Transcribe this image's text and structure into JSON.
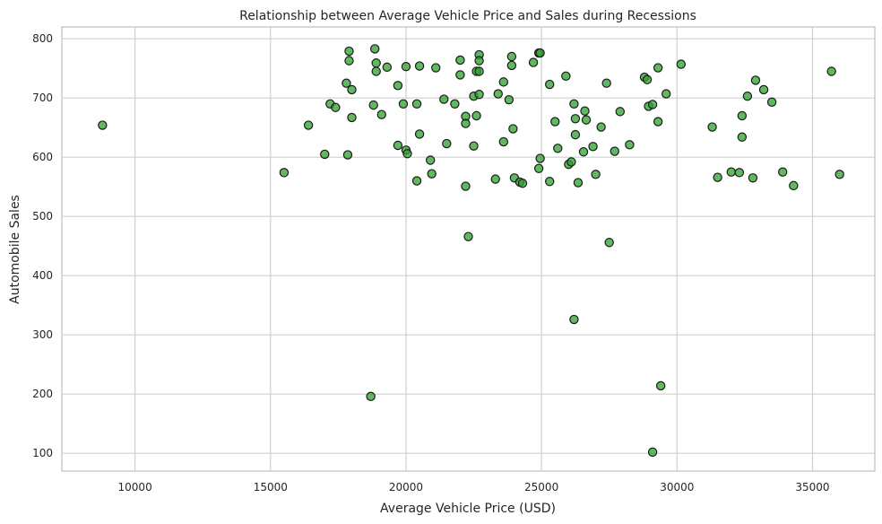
{
  "chart_data": {
    "type": "scatter",
    "title": "Relationship between Average Vehicle Price and Sales during Recessions",
    "xlabel": "Average Vehicle Price (USD)",
    "ylabel": "Automobile Sales",
    "xlim": [
      7300,
      37300
    ],
    "ylim": [
      70,
      820
    ],
    "x_ticks": [
      10000,
      15000,
      20000,
      25000,
      30000,
      35000
    ],
    "y_ticks": [
      100,
      200,
      300,
      400,
      500,
      600,
      700,
      800
    ],
    "grid": true,
    "point_color": "#2ca02c",
    "edge_color": "#1a1a1a",
    "points": [
      [
        8800,
        654
      ],
      [
        15500,
        574
      ],
      [
        16400,
        654
      ],
      [
        17000,
        605
      ],
      [
        17200,
        690
      ],
      [
        17400,
        684
      ],
      [
        17800,
        725
      ],
      [
        17850,
        604
      ],
      [
        17900,
        779
      ],
      [
        17900,
        763
      ],
      [
        18000,
        714
      ],
      [
        18000,
        667
      ],
      [
        18700,
        196
      ],
      [
        18800,
        688
      ],
      [
        18850,
        783
      ],
      [
        18900,
        759
      ],
      [
        18900,
        745
      ],
      [
        19100,
        672
      ],
      [
        19300,
        752
      ],
      [
        19700,
        620
      ],
      [
        19700,
        721
      ],
      [
        19900,
        690
      ],
      [
        20000,
        753
      ],
      [
        20000,
        612
      ],
      [
        20050,
        606
      ],
      [
        20400,
        690
      ],
      [
        20400,
        560
      ],
      [
        20500,
        754
      ],
      [
        20500,
        639
      ],
      [
        20900,
        595
      ],
      [
        20950,
        572
      ],
      [
        21100,
        751
      ],
      [
        21400,
        698
      ],
      [
        21500,
        623
      ],
      [
        21800,
        690
      ],
      [
        22000,
        764
      ],
      [
        22000,
        739
      ],
      [
        22200,
        669
      ],
      [
        22200,
        657
      ],
      [
        22200,
        551
      ],
      [
        22300,
        466
      ],
      [
        22500,
        703
      ],
      [
        22500,
        619
      ],
      [
        22600,
        670
      ],
      [
        22600,
        745
      ],
      [
        22700,
        773
      ],
      [
        22700,
        763
      ],
      [
        22700,
        745
      ],
      [
        22700,
        706
      ],
      [
        23300,
        563
      ],
      [
        23400,
        707
      ],
      [
        23600,
        727
      ],
      [
        23600,
        626
      ],
      [
        23800,
        697
      ],
      [
        23900,
        770
      ],
      [
        23900,
        755
      ],
      [
        23950,
        648
      ],
      [
        24000,
        565
      ],
      [
        24200,
        558
      ],
      [
        24300,
        556
      ],
      [
        24700,
        760
      ],
      [
        24900,
        776
      ],
      [
        24900,
        581
      ],
      [
        24950,
        776
      ],
      [
        24950,
        598
      ],
      [
        25300,
        723
      ],
      [
        25300,
        559
      ],
      [
        25500,
        660
      ],
      [
        25600,
        615
      ],
      [
        25900,
        737
      ],
      [
        26000,
        588
      ],
      [
        26100,
        592
      ],
      [
        26200,
        690
      ],
      [
        26200,
        326
      ],
      [
        26250,
        665
      ],
      [
        26250,
        638
      ],
      [
        26350,
        557
      ],
      [
        26550,
        609
      ],
      [
        26600,
        678
      ],
      [
        26650,
        663
      ],
      [
        26900,
        618
      ],
      [
        27000,
        571
      ],
      [
        27200,
        651
      ],
      [
        27400,
        725
      ],
      [
        27500,
        456
      ],
      [
        27700,
        610
      ],
      [
        27900,
        677
      ],
      [
        28250,
        621
      ],
      [
        28800,
        735
      ],
      [
        28900,
        731
      ],
      [
        28950,
        686
      ],
      [
        29100,
        689
      ],
      [
        29100,
        102
      ],
      [
        29300,
        660
      ],
      [
        29300,
        751
      ],
      [
        29400,
        214
      ],
      [
        29600,
        707
      ],
      [
        30150,
        757
      ],
      [
        31300,
        651
      ],
      [
        31500,
        566
      ],
      [
        32000,
        575
      ],
      [
        32300,
        574
      ],
      [
        32400,
        670
      ],
      [
        32400,
        634
      ],
      [
        32600,
        703
      ],
      [
        32800,
        565
      ],
      [
        32900,
        730
      ],
      [
        33200,
        714
      ],
      [
        33500,
        693
      ],
      [
        33900,
        575
      ],
      [
        34300,
        552
      ],
      [
        35700,
        745
      ],
      [
        36000,
        571
      ]
    ]
  }
}
